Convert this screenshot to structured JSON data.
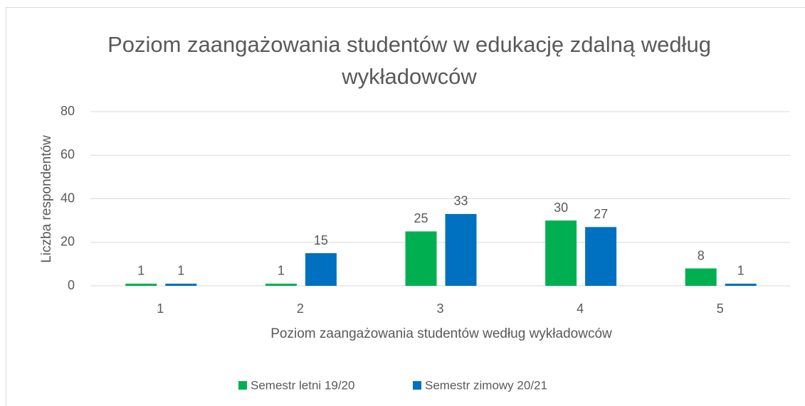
{
  "chart_data": {
    "type": "bar",
    "title": "Poziom zaangażowania studentów w edukację zdalną według wykładowców",
    "x_label": "Poziom zaangażowania studentów według wykładowców",
    "y_label": "Liczba respondentów",
    "categories": [
      "1",
      "2",
      "3",
      "4",
      "5"
    ],
    "series": [
      {
        "name": "Semestr letni 19/20",
        "color": "#00b050",
        "values": [
          1,
          1,
          25,
          30,
          8
        ]
      },
      {
        "name": "Semestr zimowy 20/21",
        "color": "#0070c0",
        "values": [
          1,
          15,
          33,
          27,
          1
        ]
      }
    ],
    "ylim": [
      0,
      80
    ],
    "yticks": [
      0,
      20,
      40,
      60,
      80
    ],
    "grid": true,
    "legend": "bottom"
  }
}
